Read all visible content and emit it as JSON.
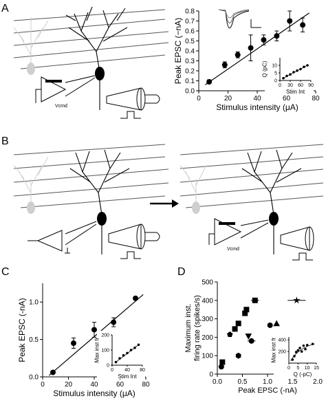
{
  "panels": {
    "A": "A",
    "B": "B",
    "C": "C",
    "D": "D"
  },
  "schematic": {
    "vcmd_label": "Vcmd"
  },
  "colors": {
    "ink": "#000000",
    "gray_cell": "#cfcfcf",
    "fiber": "#555555"
  },
  "chart_data": [
    {
      "id": "A-main",
      "type": "scatter",
      "xlabel": "Stimulus intensity (μA)",
      "ylabel": "Peak EPSC (−nA)",
      "xlim": [
        0,
        90
      ],
      "ylim": [
        0,
        0.8
      ],
      "xticks": [
        "0",
        "20",
        "40",
        "60",
        "80"
      ],
      "yticks": [
        "0.0",
        "0.1",
        "0.2",
        "0.3",
        "0.4",
        "0.5",
        "0.6",
        "0.7",
        "0.8"
      ],
      "fit": {
        "x": [
          5,
          85
        ],
        "y": [
          0.06,
          0.78
        ]
      },
      "points": [
        {
          "x": 8,
          "y": 0.09,
          "yerr": 0.02
        },
        {
          "x": 20,
          "y": 0.26,
          "yerr": 0.03
        },
        {
          "x": 30,
          "y": 0.36,
          "yerr": 0.03
        },
        {
          "x": 40,
          "y": 0.43,
          "yerr": 0.13
        },
        {
          "x": 50,
          "y": 0.51,
          "yerr": 0.05
        },
        {
          "x": 60,
          "y": 0.55,
          "yerr": 0.05
        },
        {
          "x": 70,
          "y": 0.7,
          "yerr": 0.1
        },
        {
          "x": 80,
          "y": 0.66,
          "yerr": 0.07
        }
      ]
    },
    {
      "id": "A-inset",
      "type": "scatter",
      "xlabel": "Stim Int",
      "ylabel": "Q (pC)",
      "xlim": [
        0,
        90
      ],
      "ylim": [
        0,
        15
      ],
      "xticks": [
        "0",
        "30",
        "60",
        "90"
      ],
      "yticks": [
        "0",
        "5",
        "10"
      ],
      "x": [
        10,
        20,
        30,
        40,
        50,
        60,
        70,
        80
      ],
      "y": [
        1.5,
        3,
        4,
        5.5,
        6.5,
        7.5,
        9,
        10
      ]
    },
    {
      "id": "C-main",
      "type": "scatter",
      "xlabel": "Stimulus intensity (μA)",
      "ylabel": "Peak EPSC (-nA)",
      "xlim": [
        0,
        80
      ],
      "ylim": [
        0,
        1.25
      ],
      "xticks": [
        "0",
        "20",
        "40",
        "60",
        "80"
      ],
      "yticks": [
        "0.0",
        "0.5",
        "1.0"
      ],
      "fit": {
        "x": [
          5,
          78
        ],
        "y": [
          0.02,
          1.1
        ]
      },
      "points": [
        {
          "x": 8,
          "y": 0.06,
          "yerr": 0.02
        },
        {
          "x": 24,
          "y": 0.45,
          "yerr": 0.07
        },
        {
          "x": 40,
          "y": 0.63,
          "yerr": 0.1
        },
        {
          "x": 55,
          "y": 0.73,
          "yerr": 0.06
        },
        {
          "x": 72,
          "y": 1.05,
          "yerr": 0.02
        }
      ]
    },
    {
      "id": "C-inset",
      "type": "scatter",
      "xlabel": "Stim Int",
      "ylabel": "Max inst fr",
      "xlim": [
        0,
        80
      ],
      "ylim": [
        0,
        200
      ],
      "xticks": [
        "0",
        "40",
        "80"
      ],
      "yticks": [
        "0",
        "100",
        "200"
      ],
      "x": [
        10,
        20,
        30,
        40,
        50,
        60,
        70
      ],
      "y": [
        20,
        45,
        65,
        80,
        100,
        115,
        135
      ]
    },
    {
      "id": "D-main",
      "type": "scatter",
      "xlabel": "Peak EPSC (-nA)",
      "ylabel": "Maximum inst.\nfiring rate (spikes/s)",
      "xlim": [
        0,
        2
      ],
      "ylim": [
        0,
        500
      ],
      "xticks": [
        "0.0",
        "0.5",
        "1.0",
        "1.5",
        "2.0"
      ],
      "yticks": [
        "0",
        "100",
        "200",
        "300",
        "400",
        "500"
      ],
      "points": [
        {
          "x": 0.08,
          "y": 40,
          "m": "circle"
        },
        {
          "x": 0.1,
          "y": 65,
          "m": "square"
        },
        {
          "x": 0.42,
          "y": 100,
          "m": "hexagon"
        },
        {
          "x": 0.25,
          "y": 215,
          "m": "pentagon"
        },
        {
          "x": 0.35,
          "y": 245,
          "m": "square"
        },
        {
          "x": 0.42,
          "y": 275,
          "m": "square"
        },
        {
          "x": 0.55,
          "y": 330,
          "m": "square"
        },
        {
          "x": 0.58,
          "y": 350,
          "m": "square"
        },
        {
          "x": 0.62,
          "y": 205,
          "m": "triangle-down"
        },
        {
          "x": 0.75,
          "y": 400,
          "m": "square",
          "xerr": 0.08
        },
        {
          "x": 0.68,
          "y": 180,
          "m": "circle",
          "xerr": 0.08
        },
        {
          "x": 1.05,
          "y": 265,
          "m": "circle"
        },
        {
          "x": 1.18,
          "y": 275,
          "m": "triangle"
        },
        {
          "x": 1.58,
          "y": 400,
          "m": "star",
          "xerr": 0.18
        }
      ]
    },
    {
      "id": "D-inset",
      "type": "scatter",
      "xlabel": "Q (-pC)",
      "ylabel": "Max inst fr",
      "xlim": [
        0,
        15
      ],
      "ylim": [
        0,
        450
      ],
      "xticks": [
        "0",
        "5",
        "10",
        "15"
      ],
      "yticks": [
        "200",
        "400"
      ],
      "x": [
        2,
        3,
        4,
        5,
        6,
        7,
        8,
        9,
        10,
        13
      ],
      "y": [
        60,
        120,
        190,
        220,
        260,
        200,
        300,
        240,
        310,
        330
      ]
    }
  ]
}
